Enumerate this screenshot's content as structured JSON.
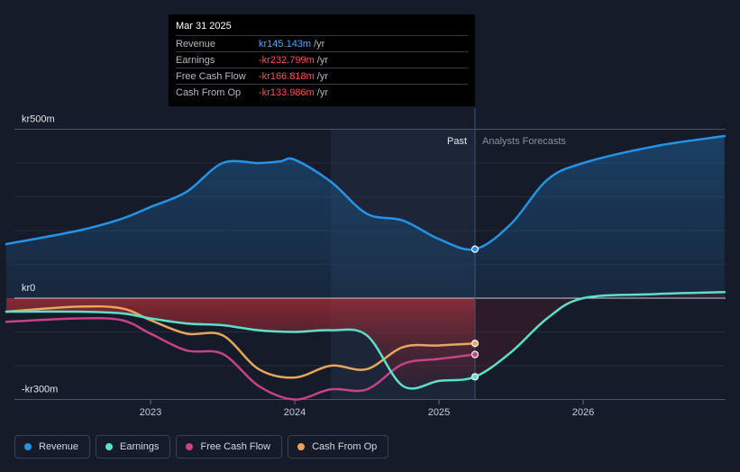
{
  "tooltip": {
    "date": "Mar 31 2025",
    "rows": [
      {
        "label": "Revenue",
        "value": "kr145.143m",
        "unit": "/yr",
        "negative": false
      },
      {
        "label": "Earnings",
        "value": "-kr232.799m",
        "unit": "/yr",
        "negative": true
      },
      {
        "label": "Free Cash Flow",
        "value": "-kr166.818m",
        "unit": "/yr",
        "negative": true
      },
      {
        "label": "Cash From Op",
        "value": "-kr133.986m",
        "unit": "/yr",
        "negative": true
      }
    ]
  },
  "legend": [
    {
      "label": "Revenue",
      "color": "#2394e8"
    },
    {
      "label": "Earnings",
      "color": "#5ce0c9"
    },
    {
      "label": "Free Cash Flow",
      "color": "#c8418a"
    },
    {
      "label": "Cash From Op",
      "color": "#e8a65b"
    }
  ],
  "chart_data": {
    "type": "line",
    "y_axis_labels": [
      "kr500m",
      "kr0",
      "-kr300m"
    ],
    "y_ticks": [
      500,
      0,
      -300
    ],
    "ylim": [
      -300,
      500
    ],
    "x_ticks": [
      "2023",
      "2024",
      "2025",
      "2026"
    ],
    "x_tick_values": [
      2023.0,
      2024.0,
      2025.0,
      2026.0
    ],
    "xlim": [
      2021.8,
      2026.98
    ],
    "divider_x": 2025.25,
    "shade_start_x": 2024.25,
    "past_label": "Past",
    "forecast_label": "Analysts Forecasts",
    "grid": true,
    "series": [
      {
        "name": "Revenue",
        "color": "#2394e8",
        "area": true,
        "end_marker": true,
        "points": [
          [
            2022.0,
            160
          ],
          [
            2022.5,
            200
          ],
          [
            2022.8,
            235
          ],
          [
            2023.0,
            270
          ],
          [
            2023.25,
            315
          ],
          [
            2023.5,
            400
          ],
          [
            2023.75,
            400
          ],
          [
            2023.9,
            405
          ],
          [
            2024.0,
            410
          ],
          [
            2024.25,
            345
          ],
          [
            2024.5,
            250
          ],
          [
            2024.75,
            230
          ],
          [
            2025.0,
            175
          ],
          [
            2025.25,
            145
          ],
          [
            2025.5,
            220
          ],
          [
            2025.75,
            350
          ],
          [
            2026.0,
            400
          ],
          [
            2026.5,
            450
          ],
          [
            2026.98,
            480
          ]
        ]
      },
      {
        "name": "Earnings",
        "color": "#5ce0c9",
        "end_marker": true,
        "points": [
          [
            2022.0,
            -40
          ],
          [
            2022.5,
            -40
          ],
          [
            2022.8,
            -45
          ],
          [
            2023.0,
            -60
          ],
          [
            2023.25,
            -75
          ],
          [
            2023.5,
            -80
          ],
          [
            2023.75,
            -95
          ],
          [
            2024.0,
            -100
          ],
          [
            2024.25,
            -95
          ],
          [
            2024.5,
            -110
          ],
          [
            2024.75,
            -260
          ],
          [
            2025.0,
            -245
          ],
          [
            2025.25,
            -232.8
          ],
          [
            2025.5,
            -160
          ],
          [
            2025.75,
            -60
          ],
          [
            2026.0,
            0
          ],
          [
            2026.5,
            12
          ],
          [
            2026.98,
            18
          ]
        ]
      },
      {
        "name": "Free Cash Flow",
        "color": "#c8418a",
        "end_marker": true,
        "points": [
          [
            2022.0,
            -70
          ],
          [
            2022.5,
            -60
          ],
          [
            2022.8,
            -65
          ],
          [
            2023.0,
            -105
          ],
          [
            2023.25,
            -155
          ],
          [
            2023.5,
            -165
          ],
          [
            2023.75,
            -260
          ],
          [
            2024.0,
            -300
          ],
          [
            2024.25,
            -270
          ],
          [
            2024.5,
            -270
          ],
          [
            2024.75,
            -195
          ],
          [
            2025.0,
            -180
          ],
          [
            2025.25,
            -166.8
          ]
        ]
      },
      {
        "name": "Cash From Op",
        "color": "#e8a65b",
        "end_marker": true,
        "points": [
          [
            2022.0,
            -40
          ],
          [
            2022.5,
            -25
          ],
          [
            2022.8,
            -30
          ],
          [
            2023.0,
            -65
          ],
          [
            2023.25,
            -105
          ],
          [
            2023.5,
            -110
          ],
          [
            2023.75,
            -210
          ],
          [
            2024.0,
            -235
          ],
          [
            2024.25,
            -200
          ],
          [
            2024.5,
            -210
          ],
          [
            2024.75,
            -145
          ],
          [
            2025.0,
            -140
          ],
          [
            2025.25,
            -134
          ]
        ]
      }
    ]
  }
}
